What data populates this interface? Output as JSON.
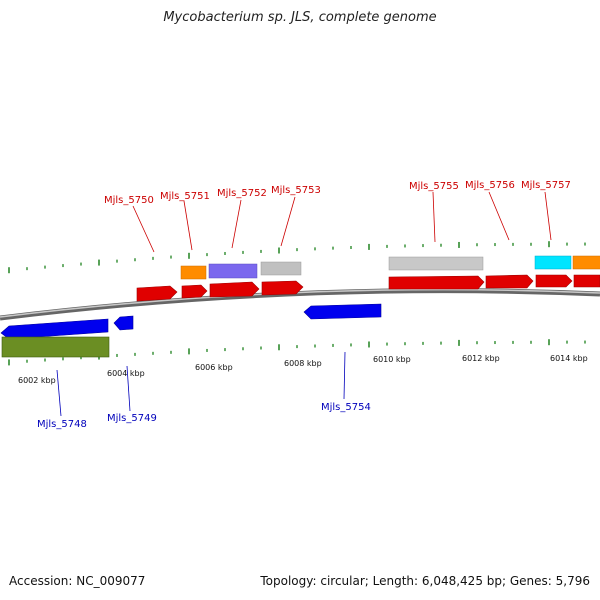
{
  "title": "Mycobacterium sp. JLS, complete genome",
  "footer": {
    "accession": "Accession: NC_009077",
    "summary": "Topology: circular; Length: 6,048,425 bp; Genes: 5,796"
  },
  "colors": {
    "plus_label": "#cc0000",
    "minus_label": "#0000bb",
    "ticks": "#2e8b2e",
    "backbone": "#888888"
  },
  "scale_labels": [
    "6002 kbp",
    "6004 kbp",
    "6006 kbp",
    "6008 kbp",
    "6010 kbp",
    "6012 kbp",
    "6014 kbp"
  ],
  "genes_plus": [
    {
      "label": "Mjls_5750"
    },
    {
      "label": "Mjls_5751"
    },
    {
      "label": "Mjls_5752"
    },
    {
      "label": "Mjls_5753"
    },
    {
      "label": "Mjls_5755"
    },
    {
      "label": "Mjls_5756"
    },
    {
      "label": "Mjls_5757"
    }
  ],
  "genes_minus": [
    {
      "label": "Mjls_5748"
    },
    {
      "label": "Mjls_5749"
    },
    {
      "label": "Mjls_5754"
    }
  ]
}
